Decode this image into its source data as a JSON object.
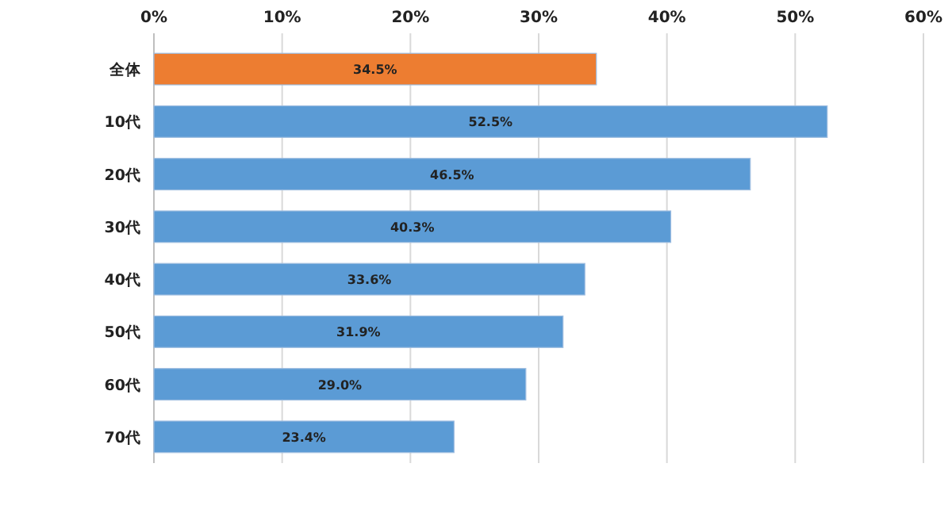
{
  "chart_data": {
    "type": "bar",
    "orientation": "horizontal",
    "categories": [
      "全体",
      "10代",
      "20代",
      "30代",
      "40代",
      "50代",
      "60代",
      "70代"
    ],
    "values": [
      34.5,
      52.5,
      46.5,
      40.3,
      33.6,
      31.9,
      29.0,
      23.4
    ],
    "colors": [
      "#ed7d31",
      "#5b9bd5",
      "#5b9bd5",
      "#5b9bd5",
      "#5b9bd5",
      "#5b9bd5",
      "#5b9bd5",
      "#5b9bd5"
    ],
    "value_labels": [
      "34.5%",
      "52.5%",
      "46.5%",
      "40.3%",
      "33.6%",
      "31.9%",
      "29.0%",
      "23.4%"
    ],
    "xlim": [
      0,
      60
    ],
    "xticks": [
      {
        "value": 0,
        "label": "0%"
      },
      {
        "value": 10,
        "label": "10%"
      },
      {
        "value": 20,
        "label": "20%"
      },
      {
        "value": 30,
        "label": "30%"
      },
      {
        "value": 40,
        "label": "40%"
      },
      {
        "value": 50,
        "label": "50%"
      },
      {
        "value": 60,
        "label": "60%"
      }
    ],
    "grid": "x"
  }
}
